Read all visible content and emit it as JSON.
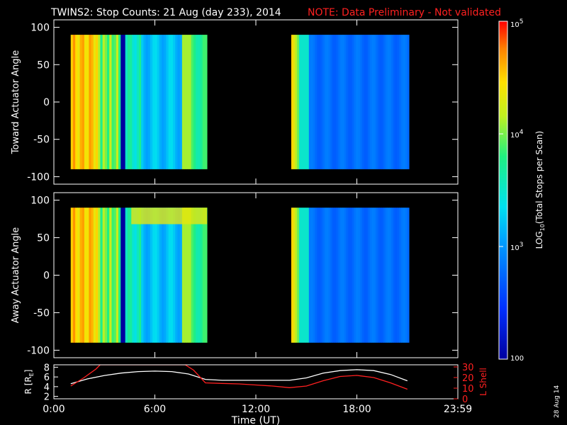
{
  "header": {
    "title": "TWINS2: Stop Counts: 21 Aug (day 233), 2014",
    "note": "NOTE: Data Preliminary - Not validated",
    "note_color": "#ff2020"
  },
  "stamp": "28 Aug 14",
  "chart_data": [
    {
      "type": "heatmap",
      "name": "Toward",
      "ylabel": "Toward Actuator Angle",
      "ylim": [
        -110,
        110
      ],
      "yticks": [
        100,
        50,
        0,
        -50,
        -100
      ],
      "xlim": [
        0,
        24
      ],
      "data_coverage": [
        {
          "start": 1.0,
          "end": 9.1,
          "angle_range": [
            -90,
            90
          ]
        },
        {
          "start": 14.1,
          "end": 21.1,
          "angle_range": [
            -90,
            90
          ]
        }
      ]
    },
    {
      "type": "heatmap",
      "name": "Away",
      "ylabel": "Away Actuator Angle",
      "ylim": [
        -110,
        110
      ],
      "yticks": [
        100,
        50,
        0,
        -50,
        -100
      ],
      "xlim": [
        0,
        24
      ],
      "data_coverage": [
        {
          "start": 1.0,
          "end": 9.1,
          "angle_range": [
            -90,
            90
          ]
        },
        {
          "start": 14.1,
          "end": 21.1,
          "angle_range": [
            -90,
            90
          ]
        }
      ]
    },
    {
      "type": "line",
      "name": "Orbit",
      "ylabel_left": "R [R",
      "ylabel_left_sub": "E",
      "ylabel_left_end": "]",
      "ylabel_right": "L Shell",
      "yticks_left": [
        8,
        6,
        4,
        2
      ],
      "ylim_left": [
        1.5,
        8.5
      ],
      "yticks_right": [
        30,
        20,
        10,
        0
      ],
      "ylim_right": [
        0,
        32
      ],
      "series": [
        {
          "name": "R",
          "color": "#ffffff",
          "x": [
            1,
            2,
            3,
            4,
            5,
            6,
            7,
            8,
            9,
            10,
            11,
            12,
            13,
            14,
            15,
            16,
            17,
            18,
            19,
            20,
            21
          ],
          "y": [
            4.6,
            5.6,
            6.3,
            6.8,
            7.1,
            7.2,
            7.1,
            6.6,
            5.5,
            5.3,
            5.3,
            5.3,
            5.3,
            5.3,
            5.8,
            6.8,
            7.3,
            7.5,
            7.3,
            6.5,
            5.2
          ]
        },
        {
          "name": "L Shell",
          "color": "#ff2020",
          "x": [
            1,
            1.8,
            2.5,
            2.75,
            7.8,
            8.3,
            9,
            10,
            11,
            12,
            13,
            14,
            15,
            16,
            17,
            18,
            19,
            20,
            21
          ],
          "y": [
            12,
            20,
            28,
            32,
            32,
            27,
            15,
            14.5,
            14,
            13,
            12,
            10.5,
            12,
            17,
            21,
            22,
            20,
            15,
            9
          ]
        }
      ],
      "xticks": [
        {
          "v": 0,
          "label": "0:00"
        },
        {
          "v": 6,
          "label": "6:00"
        },
        {
          "v": 12,
          "label": "12:00"
        },
        {
          "v": 18,
          "label": "18:00"
        },
        {
          "v": 24,
          "label": "23:59"
        }
      ],
      "xlabel": "Time (UT)"
    }
  ],
  "colorbar": {
    "label": "LOG",
    "label_sub": "10",
    "label_rest": "(Total Stops per Scan)",
    "ticks": [
      {
        "base": "10",
        "exp": "5",
        "v": 5
      },
      {
        "base": "10",
        "exp": "4",
        "v": 4
      },
      {
        "base": "10",
        "exp": "3",
        "v": 3
      },
      {
        "base": "100",
        "exp": "",
        "v": 2
      }
    ],
    "range": [
      2,
      5
    ]
  }
}
